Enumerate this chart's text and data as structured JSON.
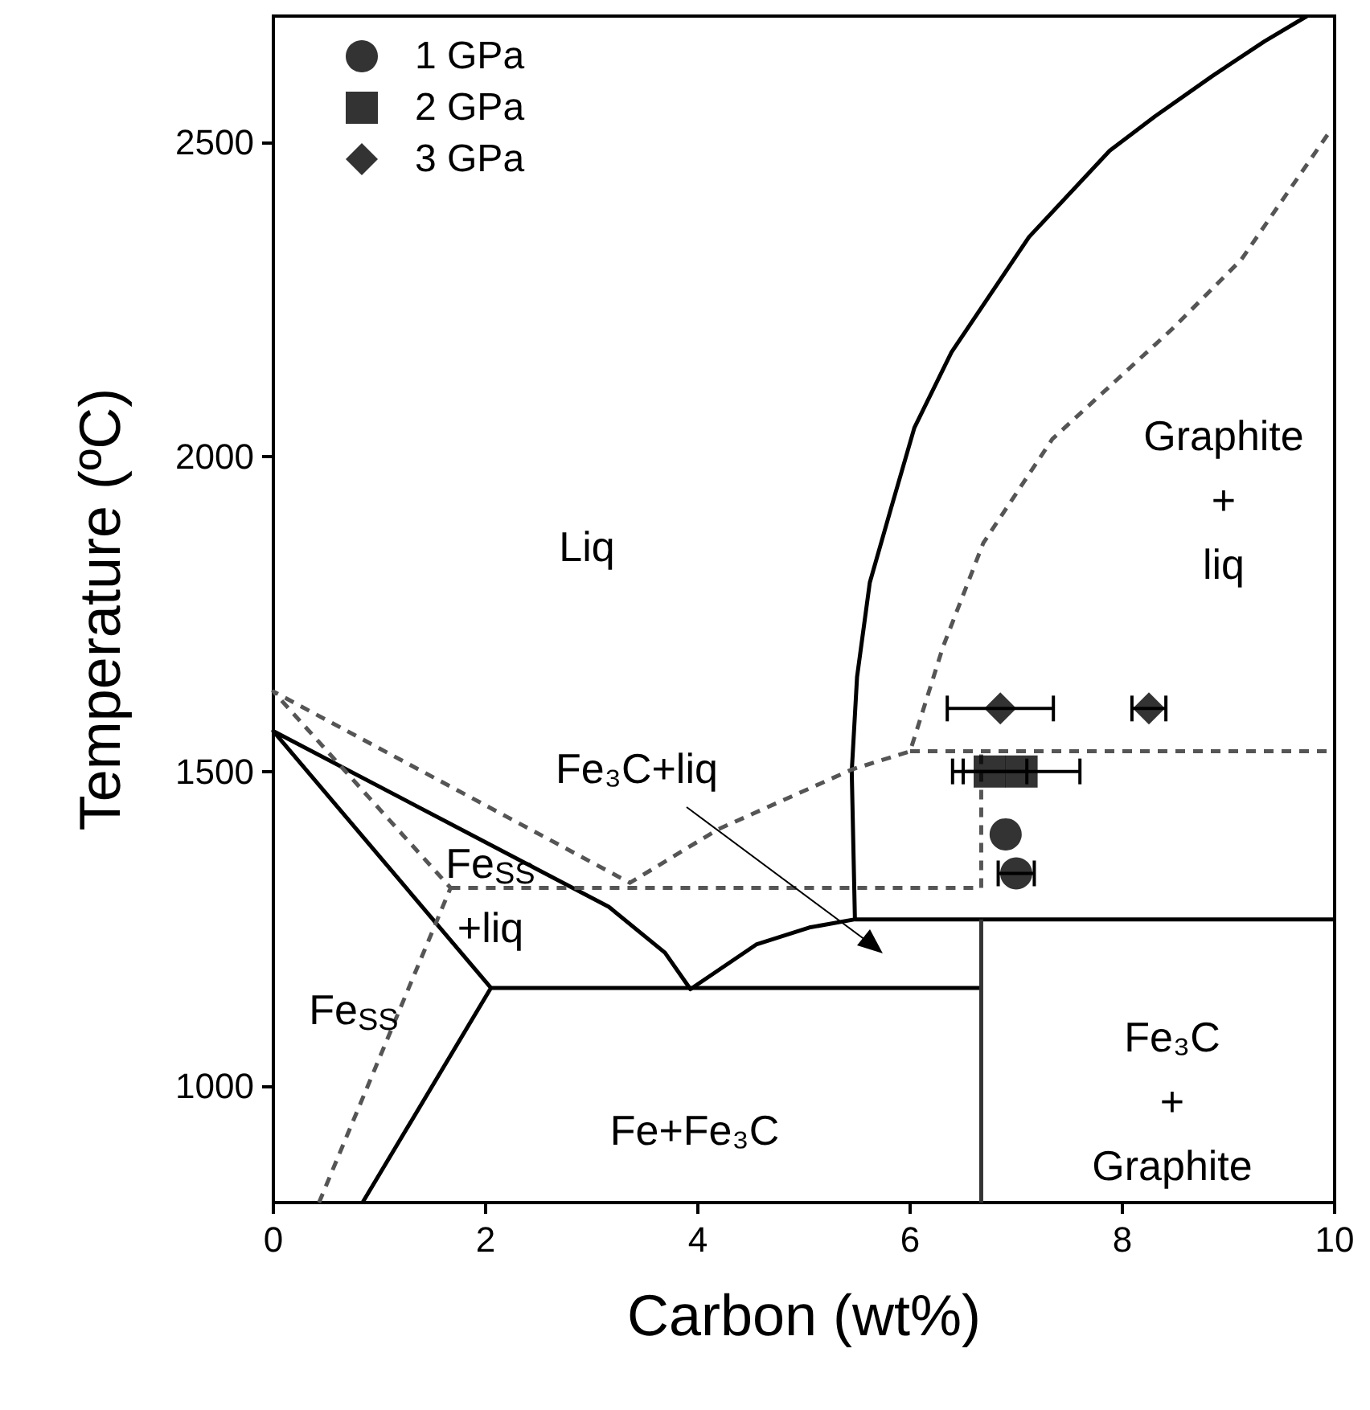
{
  "chart_data": {
    "type": "line",
    "xlabel": "Carbon (wt%)",
    "ylabel": "Temperature (ºC)",
    "xlim": [
      0,
      10
    ],
    "xticks": [
      0,
      2,
      4,
      6,
      8,
      10
    ],
    "ylim": [
      815,
      2700
    ],
    "yticks": [
      1000,
      1500,
      2000,
      2500
    ],
    "grid": false,
    "legend": "top left",
    "series": [
      {
        "color": "#000000",
        "line_style": "solid",
        "marker": "none",
        "x": [
          0.84,
          2.05,
          0,
          3.16,
          3.69,
          3.93,
          4.55,
          5.05,
          5.48,
          5.45,
          5.5,
          5.62,
          5.82,
          6.04,
          6.39,
          7.12,
          7.88,
          8.31,
          8.85,
          9.34,
          9.74
        ],
        "values": [
          815,
          1156,
          1564,
          1285,
          1212,
          1154,
          1225,
          1252,
          1265,
          1500,
          1650,
          1800,
          1918,
          2046,
          2166,
          2349,
          2486,
          2541,
          2605,
          2660,
          2700
        ]
      },
      {
        "color": "#000000",
        "line_style": "solid",
        "marker": "none",
        "x": [
          2.05,
          6.67
        ],
        "values": [
          1156,
          1156
        ]
      },
      {
        "color": "#000000",
        "line_style": "solid",
        "marker": "none",
        "x": [
          5.48,
          10
        ],
        "values": [
          1265,
          1265
        ]
      },
      {
        "color": "#333333",
        "line_style": "solid",
        "marker": "none",
        "x": [
          6.67,
          6.67
        ],
        "values": [
          815,
          1265
        ]
      },
      {
        "color": "#555555",
        "line_style": "dashed",
        "marker": "none",
        "x": [
          0.43,
          1.67,
          0,
          3.36,
          4.19,
          5.45,
          6.0,
          6.31,
          6.69,
          7.34,
          8.47,
          9.12,
          9.96
        ],
        "values": [
          815,
          1315,
          1627,
          1323,
          1408,
          1503,
          1532,
          1698,
          1863,
          2028,
          2203,
          2313,
          2518
        ]
      },
      {
        "color": "#555555",
        "line_style": "dashed",
        "marker": "none",
        "x": [
          1.67,
          6.67,
          6.67
        ],
        "values": [
          1315,
          1315,
          1532
        ]
      },
      {
        "color": "#555555",
        "line_style": "dashed",
        "marker": "none",
        "x": [
          6.0,
          10
        ],
        "values": [
          1532,
          1532
        ]
      },
      {
        "type": "scatter",
        "name": "1 GPa",
        "color": "#000000",
        "marker": "circle",
        "x": [
          6.9,
          7.0
        ],
        "values": [
          1400,
          1338
        ],
        "xerrors": [
          null,
          0.17
        ]
      },
      {
        "type": "scatter",
        "name": "2 GPa",
        "color": "#000000",
        "marker": "square",
        "x": [
          6.75,
          7.05
        ],
        "values": [
          1500,
          1500
        ],
        "xerrors": [
          0.35,
          0.55
        ]
      },
      {
        "type": "scatter",
        "name": "3 GPa",
        "color": "#000000",
        "marker": "diamond",
        "x": [
          6.85,
          8.25
        ],
        "values": [
          1600,
          1600
        ],
        "xerrors": [
          0.5,
          0.16
        ]
      }
    ],
    "annotations": [
      "Liq",
      "Fe₃C+liq",
      "Fe$_{SS}$\n+liq",
      "Fe$_{SS}$",
      "Fe+Fe₃C",
      "Fe₃C\n+\nGraphite",
      "Graphite\n+\nliq"
    ]
  }
}
